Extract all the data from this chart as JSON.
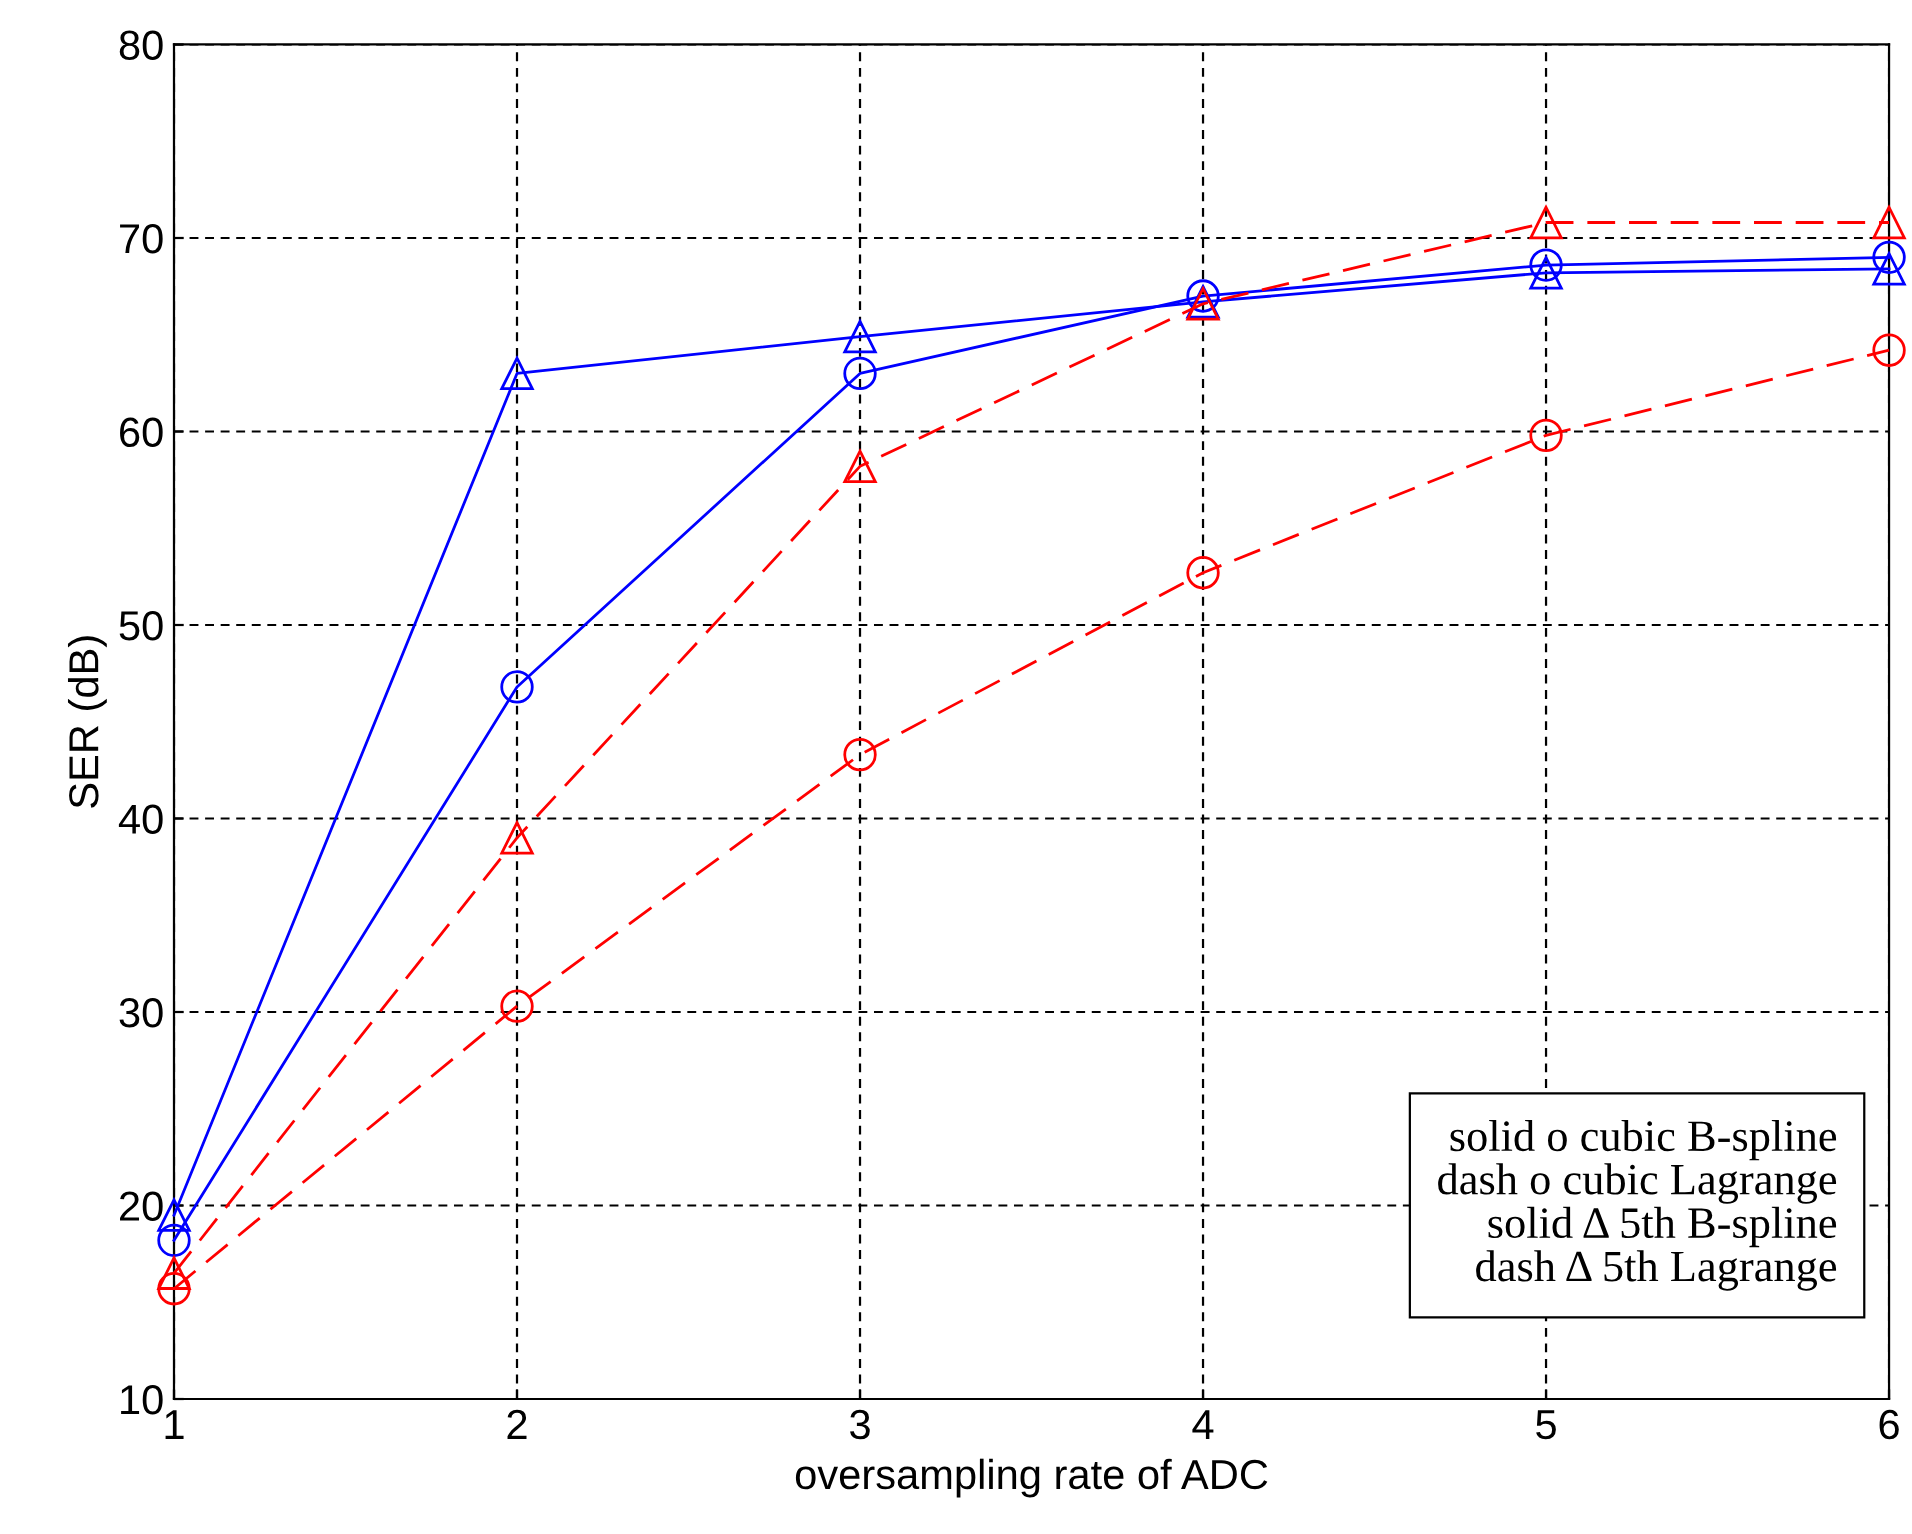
{
  "chart_data": {
    "type": "line",
    "xlabel": "oversampling rate of ADC",
    "ylabel": "SER (dB)",
    "x": [
      1,
      2,
      3,
      4,
      5,
      6
    ],
    "series": [
      {
        "color": "#0000ff",
        "marker": "circle",
        "line_style": "solid",
        "values": [
          18.2,
          46.8,
          63,
          67,
          68.6,
          69
        ]
      },
      {
        "color": "#ff0000",
        "marker": "circle",
        "line_style": "dashed",
        "values": [
          15.7,
          30.3,
          43.3,
          52.7,
          59.8,
          64.2
        ]
      },
      {
        "color": "#0000ff",
        "marker": "triangle",
        "line_style": "solid",
        "values": [
          19.5,
          63,
          64.9,
          66.7,
          68.2,
          68.4
        ]
      },
      {
        "color": "#ff0000",
        "marker": "triangle",
        "line_style": "dashed",
        "values": [
          16.5,
          39,
          58.2,
          66.6,
          70.8,
          70.8
        ]
      }
    ],
    "xlim": [
      1,
      6
    ],
    "xticks": [
      1,
      2,
      3,
      4,
      5,
      6
    ],
    "ylim": [
      10,
      80
    ],
    "yticks": [
      10,
      20,
      30,
      40,
      50,
      60,
      70,
      80
    ],
    "grid": true,
    "legend": false,
    "annotations": [
      "solid o cubic B-spline",
      "dash o cubic Lagrange",
      "solid Δ 5th B-spline",
      "dash Δ 5th Lagrange"
    ]
  }
}
